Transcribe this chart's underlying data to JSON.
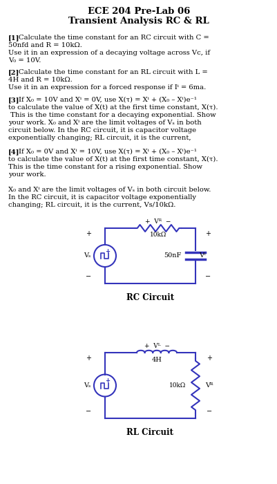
{
  "title_line1": "ECE 204 Pre-Lab 06",
  "title_line2": "Transient Analysis RC & RL",
  "bg_color": "#ffffff",
  "text_color": "#000000",
  "circuit_color": "#3333bb",
  "rc_resistor_label": "10kΩ",
  "rc_capacitor_label": "50nF",
  "rl_inductor_label": "4H",
  "rl_resistor_label": "10kΩ",
  "rc_label": "RC Circuit",
  "rl_label": "RL Circuit",
  "title_fs": 9.5,
  "body_fs": 7.2
}
